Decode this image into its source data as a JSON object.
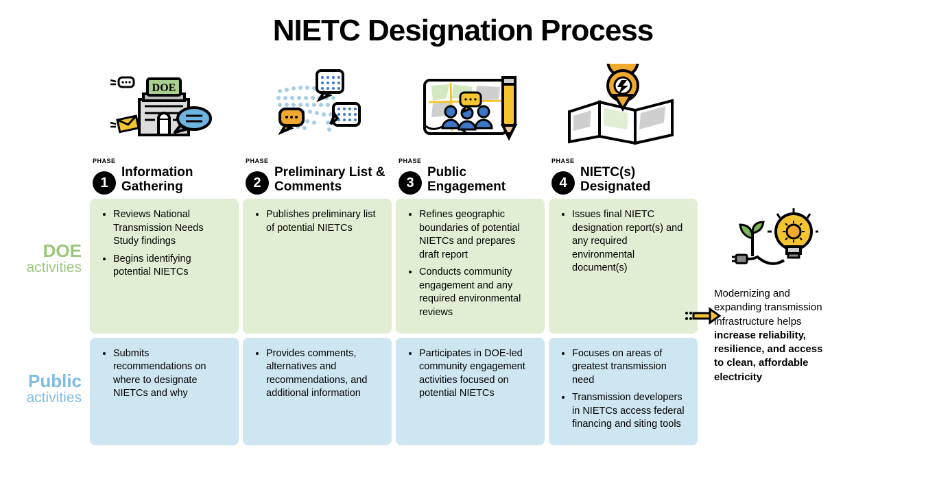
{
  "title": "NIETC Designation Process",
  "colors": {
    "doe_bg": "#e1eed3",
    "pub_bg": "#cee6f2",
    "doe_label": "#9ac77a",
    "pub_label": "#7fbde3",
    "badge_bg": "#000000",
    "badge_fg": "#ffffff",
    "orange": "#f0a92e",
    "blue": "#3d76c4",
    "lightblue": "#a6cde8",
    "green_sign": "#a8cf8e",
    "yellow": "#f5c531",
    "gray": "#cfcfcf",
    "darkgray": "#5a5a5a"
  },
  "row_labels": {
    "doe_big": "DOE",
    "doe_small": "activities",
    "pub_big": "Public",
    "pub_small": "activities"
  },
  "phases": [
    {
      "num": "1",
      "phase_label": "PHASE",
      "title": "Information Gathering",
      "doe": [
        "Reviews National Transmission Needs Study findings",
        "Begins identifying potential NIETCs"
      ],
      "public": [
        "Submits recommendations on where to designate NIETCs and why"
      ]
    },
    {
      "num": "2",
      "phase_label": "PHASE",
      "title": "Preliminary List & Comments",
      "doe": [
        "Publishes preliminary list of potential NIETCs"
      ],
      "public": [
        "Provides comments, alternatives and recommendations, and additional information"
      ]
    },
    {
      "num": "3",
      "phase_label": "PHASE",
      "title": "Public Engagement",
      "doe": [
        "Refines geographic boundaries of potential NIETCs and prepares draft report",
        "Conducts community engagement and any required environmental reviews"
      ],
      "public": [
        "Participates in DOE-led community engagement activities focused on potential NIETCs"
      ]
    },
    {
      "num": "4",
      "phase_label": "PHASE",
      "title": "NIETC(s) Designated",
      "doe": [
        "Issues final NIETC designation report(s) and any required environmental document(s)"
      ],
      "public": [
        "Focuses on areas of greatest transmission need",
        "Transmission developers in NIETCs access federal financing and siting tools"
      ]
    }
  ],
  "outcome": {
    "leadin": "Modernizing and expanding transmission infrastructure helps ",
    "bold": "increase reliability, resilience, and access to clean, affordable electricity"
  },
  "icons": {
    "doe_label": "DOE"
  }
}
